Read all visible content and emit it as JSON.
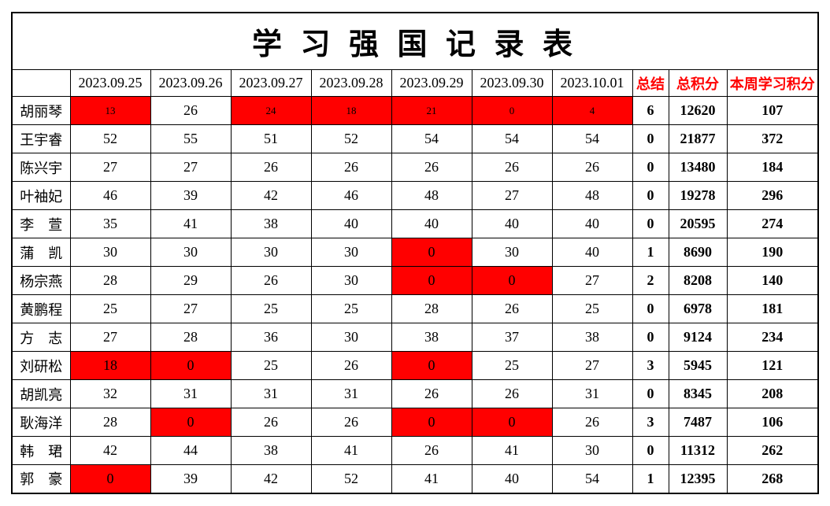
{
  "title": "学 习 强 国 记 录 表",
  "header": {
    "name_col": "",
    "dates": [
      "2023.09.25",
      "2023.09.26",
      "2023.09.27",
      "2023.09.28",
      "2023.09.29",
      "2023.09.30",
      "2023.10.01"
    ],
    "summary_cols": [
      "总结",
      "总积分",
      "本周学习积分"
    ]
  },
  "colors": {
    "highlight_bg": "#FF0000",
    "highlight_text": "#FFFF00",
    "accent_text": "#FF0000",
    "border": "#000000"
  },
  "rows": [
    {
      "name": "胡丽琴",
      "days": [
        {
          "v": "13",
          "hl": true,
          "small": true
        },
        {
          "v": "26"
        },
        {
          "v": "24",
          "hl": true,
          "small": true
        },
        {
          "v": "18",
          "hl": true,
          "small": true
        },
        {
          "v": "21",
          "hl": true,
          "small": true
        },
        {
          "v": "0",
          "hl": true,
          "small": true
        },
        {
          "v": "4",
          "hl": true,
          "small": true
        }
      ],
      "summary": "6",
      "total": "12620",
      "week": "107"
    },
    {
      "name": "王宇睿",
      "days": [
        {
          "v": "52"
        },
        {
          "v": "55"
        },
        {
          "v": "51"
        },
        {
          "v": "52"
        },
        {
          "v": "54"
        },
        {
          "v": "54"
        },
        {
          "v": "54"
        }
      ],
      "summary": "0",
      "total": "21877",
      "week": "372"
    },
    {
      "name": "陈兴宇",
      "days": [
        {
          "v": "27"
        },
        {
          "v": "27"
        },
        {
          "v": "26"
        },
        {
          "v": "26"
        },
        {
          "v": "26"
        },
        {
          "v": "26"
        },
        {
          "v": "26"
        }
      ],
      "summary": "0",
      "total": "13480",
      "week": "184"
    },
    {
      "name": "叶袖妃",
      "days": [
        {
          "v": "46"
        },
        {
          "v": "39"
        },
        {
          "v": "42"
        },
        {
          "v": "46"
        },
        {
          "v": "48"
        },
        {
          "v": "27"
        },
        {
          "v": "48"
        }
      ],
      "summary": "0",
      "total": "19278",
      "week": "296"
    },
    {
      "name": "李　萱",
      "days": [
        {
          "v": "35"
        },
        {
          "v": "41"
        },
        {
          "v": "38"
        },
        {
          "v": "40"
        },
        {
          "v": "40"
        },
        {
          "v": "40"
        },
        {
          "v": "40"
        }
      ],
      "summary": "0",
      "total": "20595",
      "week": "274"
    },
    {
      "name": "蒲　凯",
      "days": [
        {
          "v": "30"
        },
        {
          "v": "30"
        },
        {
          "v": "30"
        },
        {
          "v": "30"
        },
        {
          "v": "0",
          "hl": true
        },
        {
          "v": "30"
        },
        {
          "v": "40"
        }
      ],
      "summary": "1",
      "total": "8690",
      "week": "190"
    },
    {
      "name": "杨宗燕",
      "days": [
        {
          "v": "28"
        },
        {
          "v": "29"
        },
        {
          "v": "26"
        },
        {
          "v": "30"
        },
        {
          "v": "0",
          "hl": true
        },
        {
          "v": "0",
          "hl": true
        },
        {
          "v": "27"
        }
      ],
      "summary": "2",
      "total": "8208",
      "week": "140"
    },
    {
      "name": "黄鹏程",
      "days": [
        {
          "v": "25"
        },
        {
          "v": "27"
        },
        {
          "v": "25"
        },
        {
          "v": "25"
        },
        {
          "v": "28"
        },
        {
          "v": "26"
        },
        {
          "v": "25"
        }
      ],
      "summary": "0",
      "total": "6978",
      "week": "181"
    },
    {
      "name": "方　志",
      "days": [
        {
          "v": "27"
        },
        {
          "v": "28"
        },
        {
          "v": "36"
        },
        {
          "v": "30"
        },
        {
          "v": "38"
        },
        {
          "v": "37"
        },
        {
          "v": "38"
        }
      ],
      "summary": "0",
      "total": "9124",
      "week": "234"
    },
    {
      "name": "刘研松",
      "days": [
        {
          "v": "18",
          "hl": true
        },
        {
          "v": "0",
          "hl": true
        },
        {
          "v": "25"
        },
        {
          "v": "26"
        },
        {
          "v": "0",
          "hl": true
        },
        {
          "v": "25"
        },
        {
          "v": "27"
        }
      ],
      "summary": "3",
      "total": "5945",
      "week": "121"
    },
    {
      "name": "胡凯亮",
      "days": [
        {
          "v": "32"
        },
        {
          "v": "31"
        },
        {
          "v": "31"
        },
        {
          "v": "31"
        },
        {
          "v": "26"
        },
        {
          "v": "26"
        },
        {
          "v": "31"
        }
      ],
      "summary": "0",
      "total": "8345",
      "week": "208"
    },
    {
      "name": "耿海洋",
      "days": [
        {
          "v": "28"
        },
        {
          "v": "0",
          "hl": true
        },
        {
          "v": "26"
        },
        {
          "v": "26"
        },
        {
          "v": "0",
          "hl": true
        },
        {
          "v": "0",
          "hl": true
        },
        {
          "v": "26"
        }
      ],
      "summary": "3",
      "total": "7487",
      "week": "106"
    },
    {
      "name": "韩　珺",
      "days": [
        {
          "v": "42"
        },
        {
          "v": "44"
        },
        {
          "v": "38"
        },
        {
          "v": "41"
        },
        {
          "v": "26"
        },
        {
          "v": "41"
        },
        {
          "v": "30"
        }
      ],
      "summary": "0",
      "total": "11312",
      "week": "262"
    },
    {
      "name": "郭　豪",
      "days": [
        {
          "v": "0",
          "hl": true
        },
        {
          "v": "39"
        },
        {
          "v": "42"
        },
        {
          "v": "52"
        },
        {
          "v": "41"
        },
        {
          "v": "40"
        },
        {
          "v": "54"
        }
      ],
      "summary": "1",
      "total": "12395",
      "week": "268"
    }
  ]
}
